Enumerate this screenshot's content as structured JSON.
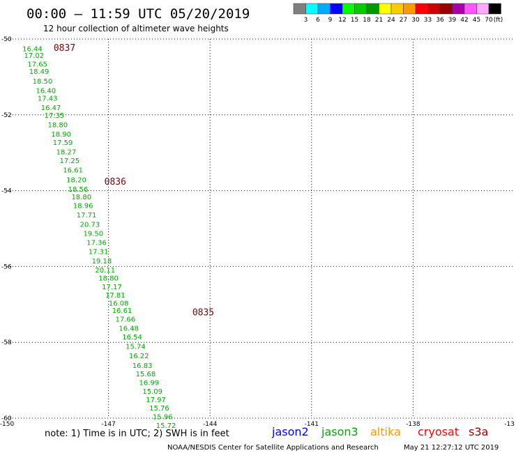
{
  "header": {
    "title": "00:00 – 11:59 UTC 05/20/2019",
    "subtitle": "12 hour collection of altimeter wave heights"
  },
  "color_scale": {
    "labels": [
      "3",
      "6",
      "9",
      "12",
      "15",
      "18",
      "21",
      "24",
      "27",
      "30",
      "33",
      "36",
      "39",
      "42",
      "45",
      "70"
    ],
    "unit": "(ft)",
    "colors": [
      "#7f7f7f",
      "#00ffff",
      "#00aaff",
      "#0000ff",
      "#00ff00",
      "#00cc00",
      "#009900",
      "#ffff00",
      "#ffcc00",
      "#ff9900",
      "#ff0000",
      "#cc0000",
      "#990000",
      "#aa00aa",
      "#ff55ff",
      "#ffaaff",
      "#000000"
    ]
  },
  "note": "note: 1) Time is in UTC; 2) SWH is in feet",
  "satellites": [
    {
      "name": "jason2",
      "color": "#0000ff"
    },
    {
      "name": "jason3",
      "color": "#00aa00"
    },
    {
      "name": "altika",
      "color": "#ff9900"
    },
    {
      "name": "cryosat",
      "color": "#ff0000"
    },
    {
      "name": "s3a",
      "color": "#990000"
    }
  ],
  "credit": "NOAA/NESDIS Center for Satellite Applications and Research",
  "timestamp": "May 21 12:27:12 UTC 2019",
  "chart_data": {
    "type": "scatter",
    "xlim": [
      -150,
      -135
    ],
    "ylim": [
      -60,
      -50
    ],
    "xticks": [
      "-150",
      "-147",
      "-144",
      "-141",
      "-138",
      "-13"
    ],
    "yticks": [
      "-50",
      "-52",
      "-54",
      "-56",
      "-58",
      "-60"
    ],
    "grid": true,
    "point_color": "#00aa00",
    "points": [
      {
        "lon": -149.25,
        "lat": -50.25,
        "swh": "16.44"
      },
      {
        "lon": -149.2,
        "lat": -50.42,
        "swh": "17.02"
      },
      {
        "lon": -149.1,
        "lat": -50.65,
        "swh": "17.65"
      },
      {
        "lon": -149.05,
        "lat": -50.85,
        "swh": "18.49"
      },
      {
        "lon": -148.95,
        "lat": -51.1,
        "swh": "18.50"
      },
      {
        "lon": -148.85,
        "lat": -51.35,
        "swh": "16.40"
      },
      {
        "lon": -148.8,
        "lat": -51.55,
        "swh": "17.43"
      },
      {
        "lon": -148.7,
        "lat": -51.8,
        "swh": "16.47"
      },
      {
        "lon": -148.6,
        "lat": -52.0,
        "swh": "17.35"
      },
      {
        "lon": -148.5,
        "lat": -52.25,
        "swh": "18.80"
      },
      {
        "lon": -148.4,
        "lat": -52.5,
        "swh": "18.90"
      },
      {
        "lon": -148.35,
        "lat": -52.72,
        "swh": "17.59"
      },
      {
        "lon": -148.25,
        "lat": -52.97,
        "swh": "18.27"
      },
      {
        "lon": -148.15,
        "lat": -53.2,
        "swh": "17.25"
      },
      {
        "lon": -148.05,
        "lat": -53.45,
        "swh": "16.61"
      },
      {
        "lon": -147.95,
        "lat": -53.7,
        "swh": "18.20"
      },
      {
        "lon": -147.9,
        "lat": -53.95,
        "swh": "18.56"
      },
      {
        "lon": -147.8,
        "lat": -54.15,
        "swh": "18.80"
      },
      {
        "lon": -147.75,
        "lat": -54.38,
        "swh": "18.96"
      },
      {
        "lon": -147.65,
        "lat": -54.63,
        "swh": "17.71"
      },
      {
        "lon": -147.55,
        "lat": -54.88,
        "swh": "20.73"
      },
      {
        "lon": -147.45,
        "lat": -55.12,
        "swh": "19.50"
      },
      {
        "lon": -147.35,
        "lat": -55.36,
        "swh": "17.36"
      },
      {
        "lon": -147.3,
        "lat": -55.6,
        "swh": "17.31"
      },
      {
        "lon": -147.2,
        "lat": -55.85,
        "swh": "19.18"
      },
      {
        "lon": -147.1,
        "lat": -56.08,
        "swh": "20.11"
      },
      {
        "lon": -147.0,
        "lat": -56.3,
        "swh": "18.80"
      },
      {
        "lon": -146.9,
        "lat": -56.53,
        "swh": "17.17"
      },
      {
        "lon": -146.8,
        "lat": -56.75,
        "swh": "17.81"
      },
      {
        "lon": -146.7,
        "lat": -56.96,
        "swh": "16.08"
      },
      {
        "lon": -146.6,
        "lat": -57.15,
        "swh": "16.61"
      },
      {
        "lon": -146.5,
        "lat": -57.38,
        "swh": "17.66"
      },
      {
        "lon": -146.4,
        "lat": -57.62,
        "swh": "16.48"
      },
      {
        "lon": -146.3,
        "lat": -57.85,
        "swh": "16.54"
      },
      {
        "lon": -146.2,
        "lat": -58.1,
        "swh": "15.74"
      },
      {
        "lon": -146.1,
        "lat": -58.35,
        "swh": "16.22"
      },
      {
        "lon": -146.0,
        "lat": -58.6,
        "swh": "16.83"
      },
      {
        "lon": -145.9,
        "lat": -58.82,
        "swh": "15.68"
      },
      {
        "lon": -145.8,
        "lat": -59.05,
        "swh": "16.99"
      },
      {
        "lon": -145.7,
        "lat": -59.28,
        "swh": "15.09"
      },
      {
        "lon": -145.6,
        "lat": -59.5,
        "swh": "17.97"
      },
      {
        "lon": -145.5,
        "lat": -59.72,
        "swh": "15.76"
      },
      {
        "lon": -145.4,
        "lat": -59.95,
        "swh": "15.96"
      },
      {
        "lon": -145.3,
        "lat": -60.18,
        "swh": "15.72"
      }
    ],
    "time_labels": [
      {
        "lon": -148.3,
        "lat": -50.22,
        "text": "0837"
      },
      {
        "lon": -146.8,
        "lat": -53.75,
        "text": "0836"
      },
      {
        "lon": -144.2,
        "lat": -57.2,
        "text": "0835"
      }
    ]
  }
}
